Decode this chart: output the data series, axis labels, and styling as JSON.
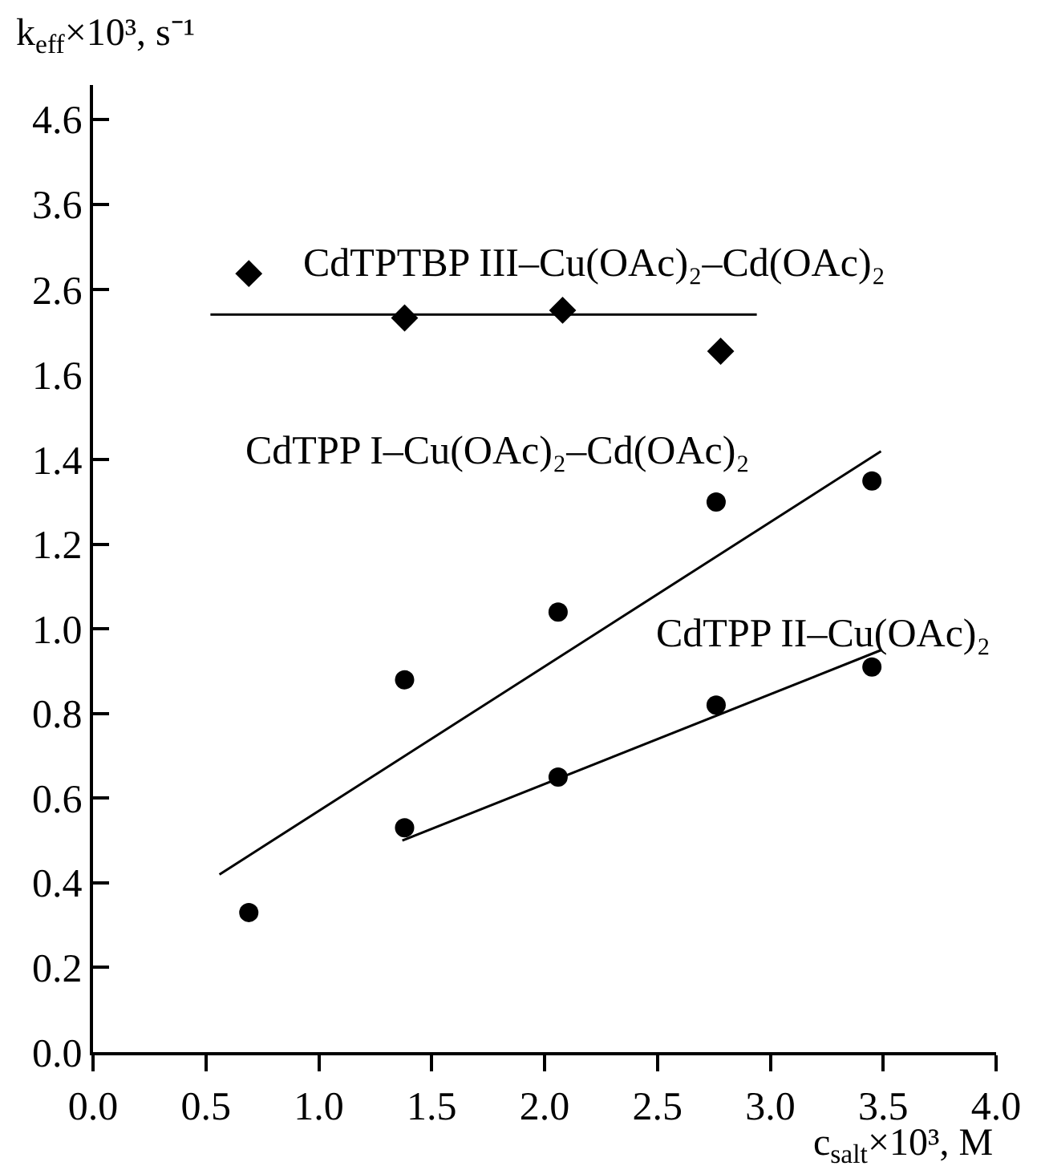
{
  "chart_data": [
    {
      "type": "scatter",
      "ylabel": "k$_{eff}$×10³, s⁻¹",
      "xlim": [
        0.0,
        4.0
      ],
      "ylim": [
        1.6,
        5.0
      ],
      "yticks": [
        2.6,
        3.6,
        4.6
      ],
      "tick_labels": "y",
      "series": [
        {
          "name": "CdTPTBP III–Cu(OAc)₂–Cd(OAc)₂",
          "color": "#000000",
          "marker": "diamond",
          "x": [
            0.69,
            1.38,
            2.08,
            2.78
          ],
          "values": [
            2.79,
            2.27,
            2.36,
            1.88
          ]
        },
        {
          "type": "line",
          "color": "#000000",
          "marker": "none",
          "x": [
            0.52,
            2.94
          ],
          "values": [
            2.31,
            2.31
          ]
        }
      ]
    },
    {
      "type": "scatter",
      "xlabel": "c$_{salt}$×10³, M",
      "xlim": [
        0.0,
        4.0
      ],
      "ylim": [
        0.0,
        1.6
      ],
      "xticks": [
        {
          "value": 0,
          "label": "0.0"
        },
        0.5,
        {
          "value": 1,
          "label": "1.0"
        },
        1.5,
        {
          "value": 2,
          "label": "2.0"
        },
        2.5,
        {
          "value": 3,
          "label": "3.0"
        },
        3.5,
        {
          "value": 4,
          "label": "4.0"
        }
      ],
      "yticks": [
        {
          "value": 0,
          "label": "0.0"
        },
        0.2,
        0.4,
        0.6,
        0.8,
        {
          "value": 1,
          "label": "1.0"
        },
        1.2,
        1.4,
        1.6
      ],
      "series": [
        {
          "name": "CdTPP I–Cu(OAc)₂–Cd(OAc)₂",
          "color": "#000000",
          "marker": "circle",
          "x": [
            0.69,
            1.38,
            2.06,
            2.76,
            3.45
          ],
          "values": [
            0.33,
            0.88,
            1.04,
            1.3,
            1.35
          ]
        },
        {
          "type": "line",
          "color": "#000000",
          "marker": "none",
          "x": [
            0.56,
            3.49
          ],
          "values": [
            0.42,
            1.42
          ]
        },
        {
          "name": "CdTPP II–Cu(OAc)₂",
          "color": "#000000",
          "marker": "circle",
          "x": [
            1.38,
            2.06,
            2.76,
            3.45
          ],
          "values": [
            0.53,
            0.65,
            0.82,
            0.91
          ]
        },
        {
          "type": "line",
          "color": "#000000",
          "marker": "none",
          "x": [
            1.37,
            3.49
          ],
          "values": [
            0.5,
            0.95
          ]
        }
      ]
    }
  ]
}
